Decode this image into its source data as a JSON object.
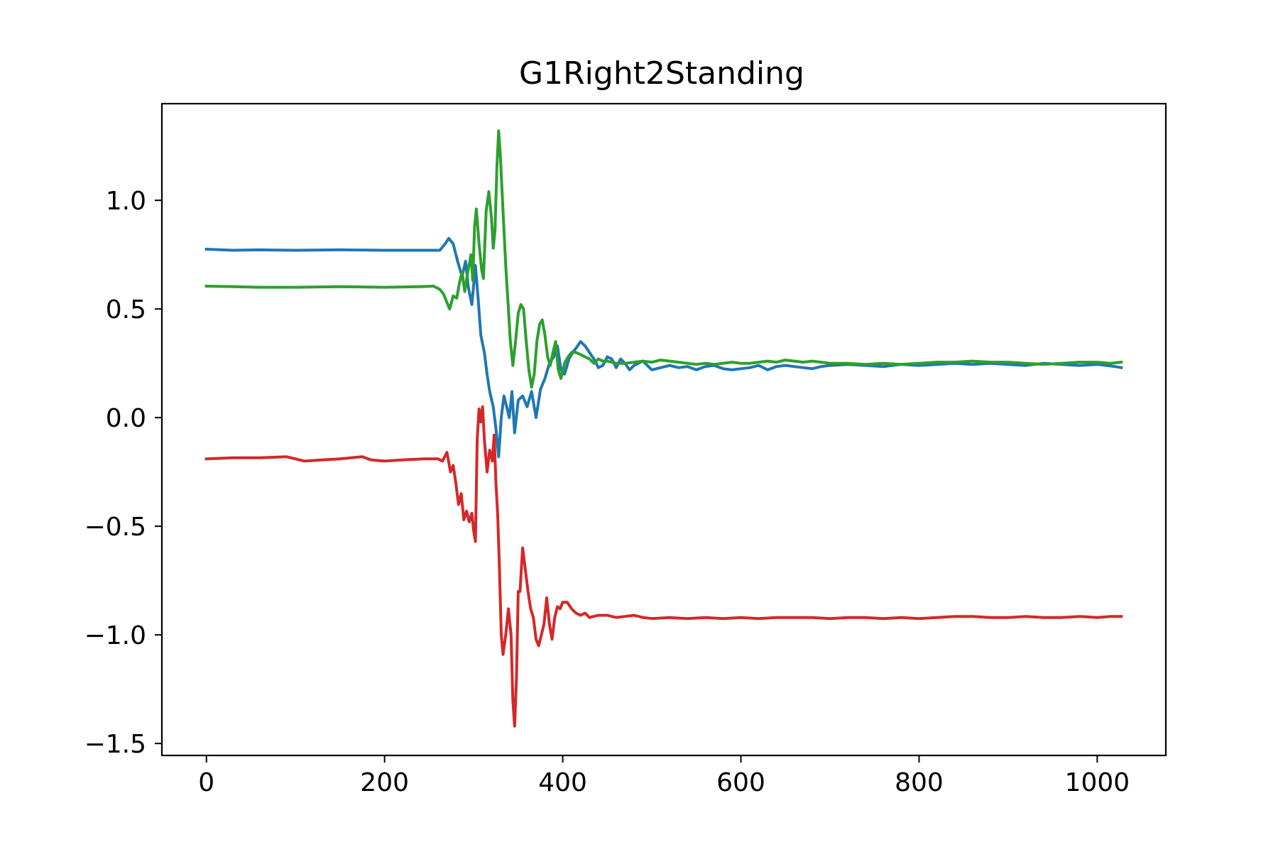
{
  "chart_data": {
    "type": "line",
    "title": "G1Right2Standing",
    "xlabel": "",
    "ylabel": "",
    "xlim": [
      -50,
      1077
    ],
    "ylim": [
      -1.555,
      1.445
    ],
    "x_ticks": [
      0,
      200,
      400,
      600,
      800,
      1000
    ],
    "x_tick_labels": [
      "0",
      "200",
      "400",
      "600",
      "800",
      "1000"
    ],
    "y_ticks": [
      1.0,
      0.5,
      0.0,
      -0.5,
      -1.0,
      -1.5
    ],
    "y_tick_labels": [
      "1.0",
      "0.5",
      "0.0",
      "−0.5",
      "−1.0",
      "−1.5"
    ],
    "grid": false,
    "legend": "none",
    "series": [
      {
        "color": "#1f77b4",
        "points": [
          [
            0,
            0.775
          ],
          [
            30,
            0.77
          ],
          [
            60,
            0.772
          ],
          [
            100,
            0.77
          ],
          [
            150,
            0.772
          ],
          [
            200,
            0.77
          ],
          [
            245,
            0.77
          ],
          [
            262,
            0.77
          ],
          [
            268,
            0.8
          ],
          [
            272,
            0.825
          ],
          [
            277,
            0.8
          ],
          [
            282,
            0.72
          ],
          [
            287,
            0.65
          ],
          [
            291,
            0.72
          ],
          [
            294,
            0.6
          ],
          [
            298,
            0.52
          ],
          [
            302,
            0.7
          ],
          [
            305,
            0.55
          ],
          [
            308,
            0.38
          ],
          [
            312,
            0.3
          ],
          [
            315,
            0.2
          ],
          [
            318,
            0.12
          ],
          [
            322,
            0.05
          ],
          [
            325,
            -0.05
          ],
          [
            328,
            -0.18
          ],
          [
            331,
            0.0
          ],
          [
            334,
            0.1
          ],
          [
            337,
            0.05
          ],
          [
            340,
            0.0
          ],
          [
            343,
            0.12
          ],
          [
            346,
            -0.07
          ],
          [
            350,
            0.08
          ],
          [
            355,
            0.1
          ],
          [
            360,
            0.05
          ],
          [
            365,
            0.12
          ],
          [
            370,
            0.0
          ],
          [
            375,
            0.13
          ],
          [
            380,
            0.18
          ],
          [
            385,
            0.25
          ],
          [
            390,
            0.28
          ],
          [
            394,
            0.33
          ],
          [
            398,
            0.22
          ],
          [
            402,
            0.2
          ],
          [
            407,
            0.27
          ],
          [
            411,
            0.3
          ],
          [
            415,
            0.32
          ],
          [
            420,
            0.35
          ],
          [
            425,
            0.33
          ],
          [
            430,
            0.3
          ],
          [
            435,
            0.27
          ],
          [
            440,
            0.23
          ],
          [
            445,
            0.24
          ],
          [
            450,
            0.28
          ],
          [
            455,
            0.27
          ],
          [
            460,
            0.23
          ],
          [
            465,
            0.27
          ],
          [
            470,
            0.25
          ],
          [
            475,
            0.22
          ],
          [
            480,
            0.24
          ],
          [
            490,
            0.26
          ],
          [
            500,
            0.22
          ],
          [
            510,
            0.23
          ],
          [
            520,
            0.24
          ],
          [
            530,
            0.23
          ],
          [
            540,
            0.235
          ],
          [
            550,
            0.22
          ],
          [
            560,
            0.235
          ],
          [
            570,
            0.24
          ],
          [
            580,
            0.225
          ],
          [
            590,
            0.22
          ],
          [
            600,
            0.225
          ],
          [
            610,
            0.23
          ],
          [
            620,
            0.24
          ],
          [
            630,
            0.22
          ],
          [
            640,
            0.235
          ],
          [
            650,
            0.24
          ],
          [
            660,
            0.235
          ],
          [
            670,
            0.23
          ],
          [
            680,
            0.225
          ],
          [
            690,
            0.235
          ],
          [
            700,
            0.24
          ],
          [
            720,
            0.245
          ],
          [
            740,
            0.24
          ],
          [
            760,
            0.235
          ],
          [
            780,
            0.245
          ],
          [
            800,
            0.24
          ],
          [
            820,
            0.245
          ],
          [
            840,
            0.25
          ],
          [
            860,
            0.245
          ],
          [
            880,
            0.25
          ],
          [
            900,
            0.245
          ],
          [
            920,
            0.24
          ],
          [
            940,
            0.25
          ],
          [
            960,
            0.245
          ],
          [
            980,
            0.24
          ],
          [
            1000,
            0.245
          ],
          [
            1010,
            0.24
          ],
          [
            1020,
            0.235
          ],
          [
            1027,
            0.23
          ]
        ]
      },
      {
        "color": "#2ca02c",
        "points": [
          [
            0,
            0.605
          ],
          [
            30,
            0.603
          ],
          [
            60,
            0.6
          ],
          [
            100,
            0.6
          ],
          [
            150,
            0.603
          ],
          [
            200,
            0.6
          ],
          [
            240,
            0.603
          ],
          [
            255,
            0.605
          ],
          [
            262,
            0.59
          ],
          [
            266,
            0.57
          ],
          [
            270,
            0.53
          ],
          [
            273,
            0.5
          ],
          [
            277,
            0.56
          ],
          [
            281,
            0.55
          ],
          [
            284,
            0.62
          ],
          [
            287,
            0.67
          ],
          [
            290,
            0.58
          ],
          [
            293,
            0.66
          ],
          [
            297,
            0.75
          ],
          [
            299,
            0.63
          ],
          [
            301,
            0.88
          ],
          [
            303,
            0.96
          ],
          [
            306,
            0.8
          ],
          [
            309,
            0.68
          ],
          [
            311,
            0.64
          ],
          [
            314,
            0.95
          ],
          [
            317,
            1.04
          ],
          [
            320,
            0.92
          ],
          [
            322,
            0.78
          ],
          [
            324,
            0.86
          ],
          [
            326,
            1.15
          ],
          [
            328,
            1.32
          ],
          [
            330,
            1.2
          ],
          [
            333,
            0.95
          ],
          [
            336,
            0.7
          ],
          [
            339,
            0.5
          ],
          [
            341,
            0.36
          ],
          [
            344,
            0.24
          ],
          [
            347,
            0.35
          ],
          [
            350,
            0.48
          ],
          [
            353,
            0.52
          ],
          [
            356,
            0.5
          ],
          [
            359,
            0.35
          ],
          [
            362,
            0.22
          ],
          [
            365,
            0.14
          ],
          [
            368,
            0.2
          ],
          [
            371,
            0.35
          ],
          [
            374,
            0.43
          ],
          [
            377,
            0.45
          ],
          [
            380,
            0.38
          ],
          [
            383,
            0.28
          ],
          [
            386,
            0.24
          ],
          [
            389,
            0.3
          ],
          [
            392,
            0.35
          ],
          [
            395,
            0.22
          ],
          [
            398,
            0.18
          ],
          [
            402,
            0.25
          ],
          [
            406,
            0.28
          ],
          [
            410,
            0.3
          ],
          [
            415,
            0.3
          ],
          [
            420,
            0.29
          ],
          [
            425,
            0.28
          ],
          [
            430,
            0.27
          ],
          [
            435,
            0.25
          ],
          [
            440,
            0.27
          ],
          [
            445,
            0.26
          ],
          [
            450,
            0.26
          ],
          [
            460,
            0.25
          ],
          [
            470,
            0.25
          ],
          [
            480,
            0.255
          ],
          [
            490,
            0.26
          ],
          [
            500,
            0.255
          ],
          [
            510,
            0.265
          ],
          [
            520,
            0.26
          ],
          [
            530,
            0.255
          ],
          [
            540,
            0.25
          ],
          [
            550,
            0.245
          ],
          [
            560,
            0.25
          ],
          [
            570,
            0.245
          ],
          [
            580,
            0.25
          ],
          [
            590,
            0.255
          ],
          [
            600,
            0.25
          ],
          [
            610,
            0.25
          ],
          [
            620,
            0.255
          ],
          [
            630,
            0.26
          ],
          [
            640,
            0.255
          ],
          [
            650,
            0.265
          ],
          [
            660,
            0.26
          ],
          [
            670,
            0.255
          ],
          [
            680,
            0.26
          ],
          [
            690,
            0.255
          ],
          [
            700,
            0.25
          ],
          [
            720,
            0.25
          ],
          [
            740,
            0.245
          ],
          [
            760,
            0.25
          ],
          [
            780,
            0.245
          ],
          [
            800,
            0.25
          ],
          [
            820,
            0.255
          ],
          [
            840,
            0.255
          ],
          [
            860,
            0.26
          ],
          [
            880,
            0.255
          ],
          [
            900,
            0.255
          ],
          [
            920,
            0.25
          ],
          [
            940,
            0.245
          ],
          [
            960,
            0.25
          ],
          [
            980,
            0.255
          ],
          [
            1000,
            0.255
          ],
          [
            1015,
            0.25
          ],
          [
            1027,
            0.255
          ]
        ]
      },
      {
        "color": "#d62728",
        "points": [
          [
            0,
            -0.19
          ],
          [
            30,
            -0.185
          ],
          [
            60,
            -0.185
          ],
          [
            90,
            -0.18
          ],
          [
            100,
            -0.19
          ],
          [
            110,
            -0.2
          ],
          [
            130,
            -0.195
          ],
          [
            150,
            -0.19
          ],
          [
            175,
            -0.18
          ],
          [
            185,
            -0.195
          ],
          [
            200,
            -0.2
          ],
          [
            220,
            -0.195
          ],
          [
            245,
            -0.19
          ],
          [
            260,
            -0.19
          ],
          [
            265,
            -0.2
          ],
          [
            270,
            -0.16
          ],
          [
            274,
            -0.25
          ],
          [
            277,
            -0.22
          ],
          [
            280,
            -0.3
          ],
          [
            283,
            -0.4
          ],
          [
            286,
            -0.35
          ],
          [
            289,
            -0.47
          ],
          [
            292,
            -0.43
          ],
          [
            295,
            -0.48
          ],
          [
            298,
            -0.44
          ],
          [
            300,
            -0.52
          ],
          [
            302,
            -0.57
          ],
          [
            304,
            -0.1
          ],
          [
            306,
            0.04
          ],
          [
            308,
            -0.02
          ],
          [
            310,
            0.05
          ],
          [
            312,
            -0.1
          ],
          [
            315,
            -0.25
          ],
          [
            318,
            -0.15
          ],
          [
            321,
            -0.2
          ],
          [
            323,
            -0.08
          ],
          [
            325,
            -0.3
          ],
          [
            327,
            -0.45
          ],
          [
            329,
            -0.7
          ],
          [
            331,
            -1.0
          ],
          [
            333,
            -1.09
          ],
          [
            336,
            -1.0
          ],
          [
            339,
            -0.88
          ],
          [
            342,
            -1.0
          ],
          [
            344,
            -1.3
          ],
          [
            346,
            -1.42
          ],
          [
            348,
            -1.2
          ],
          [
            350,
            -0.8
          ],
          [
            352,
            -0.8
          ],
          [
            355,
            -0.6
          ],
          [
            358,
            -0.7
          ],
          [
            361,
            -0.8
          ],
          [
            364,
            -0.88
          ],
          [
            367,
            -0.92
          ],
          [
            370,
            -1.02
          ],
          [
            373,
            -1.05
          ],
          [
            376,
            -1.0
          ],
          [
            379,
            -0.95
          ],
          [
            382,
            -0.83
          ],
          [
            385,
            -0.95
          ],
          [
            388,
            -1.02
          ],
          [
            391,
            -0.92
          ],
          [
            394,
            -0.87
          ],
          [
            397,
            -0.88
          ],
          [
            400,
            -0.85
          ],
          [
            405,
            -0.85
          ],
          [
            410,
            -0.88
          ],
          [
            415,
            -0.9
          ],
          [
            420,
            -0.91
          ],
          [
            425,
            -0.9
          ],
          [
            430,
            -0.92
          ],
          [
            440,
            -0.91
          ],
          [
            450,
            -0.91
          ],
          [
            460,
            -0.92
          ],
          [
            470,
            -0.915
          ],
          [
            480,
            -0.91
          ],
          [
            490,
            -0.92
          ],
          [
            500,
            -0.925
          ],
          [
            520,
            -0.92
          ],
          [
            540,
            -0.925
          ],
          [
            560,
            -0.92
          ],
          [
            580,
            -0.925
          ],
          [
            600,
            -0.92
          ],
          [
            620,
            -0.925
          ],
          [
            640,
            -0.92
          ],
          [
            660,
            -0.92
          ],
          [
            680,
            -0.92
          ],
          [
            700,
            -0.925
          ],
          [
            720,
            -0.92
          ],
          [
            740,
            -0.92
          ],
          [
            760,
            -0.925
          ],
          [
            780,
            -0.92
          ],
          [
            800,
            -0.925
          ],
          [
            820,
            -0.92
          ],
          [
            840,
            -0.915
          ],
          [
            860,
            -0.915
          ],
          [
            880,
            -0.92
          ],
          [
            900,
            -0.92
          ],
          [
            920,
            -0.915
          ],
          [
            940,
            -0.92
          ],
          [
            960,
            -0.92
          ],
          [
            980,
            -0.915
          ],
          [
            1000,
            -0.92
          ],
          [
            1015,
            -0.915
          ],
          [
            1027,
            -0.915
          ]
        ]
      }
    ]
  }
}
